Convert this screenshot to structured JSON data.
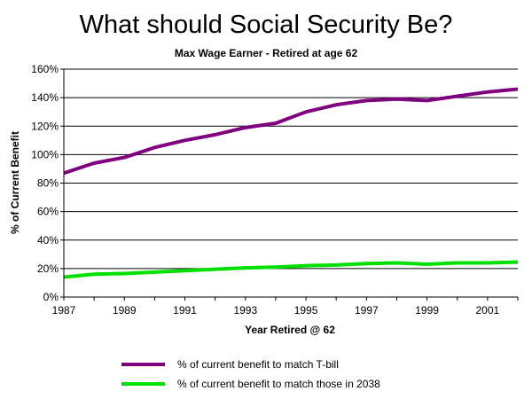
{
  "chart_data": {
    "type": "line",
    "title": "What should Social Security Be?",
    "subtitle": "Max Wage Earner - Retired at age 62",
    "xlabel": "Year Retired @ 62",
    "ylabel": "% of Current Benefit",
    "xlim": [
      1987,
      2002
    ],
    "ylim": [
      0,
      160
    ],
    "x_ticks": [
      "1987",
      "1989",
      "1991",
      "1993",
      "1995",
      "1997",
      "1999",
      "2001"
    ],
    "y_ticks": [
      "0%",
      "20%",
      "40%",
      "60%",
      "80%",
      "100%",
      "120%",
      "140%",
      "160%"
    ],
    "grid": "horizontal",
    "legend_position": "bottom",
    "x": [
      1987,
      1988,
      1989,
      1990,
      1991,
      1992,
      1993,
      1994,
      1995,
      1996,
      1997,
      1998,
      1999,
      2000,
      2001,
      2002
    ],
    "series": [
      {
        "name": "% of current benefit to match T-bill",
        "color": "#800080",
        "values": [
          87,
          94,
          98,
          105,
          110,
          114,
          119,
          122,
          130,
          135,
          138,
          139,
          138,
          141,
          144,
          146
        ]
      },
      {
        "name": "% of current benefit to match those in 2038",
        "color": "#00e000",
        "values": [
          14,
          16,
          16.5,
          17.5,
          18.5,
          19.5,
          20.5,
          21,
          22,
          22.5,
          23.5,
          24,
          23,
          24,
          24,
          24.5
        ]
      }
    ]
  }
}
